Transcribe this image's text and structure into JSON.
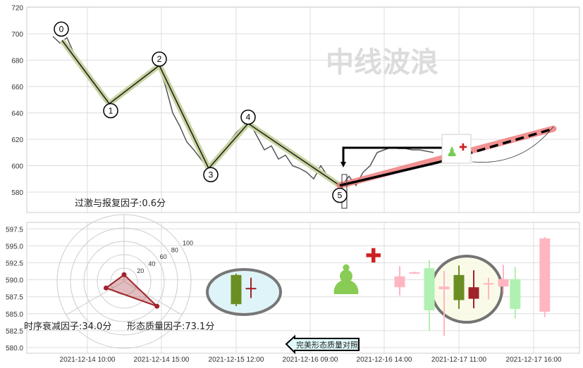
{
  "watermark": "中线波浪",
  "chart_data": [
    {
      "type": "line",
      "title": "",
      "ylim": [
        580,
        720
      ],
      "yticks": [
        580,
        600,
        620,
        640,
        660,
        680,
        700,
        720
      ],
      "grid": true,
      "price_series": [
        698,
        693,
        697,
        685,
        678,
        670,
        660,
        655,
        645,
        652,
        656,
        660,
        662,
        668,
        672,
        676,
        660,
        640,
        630,
        618,
        612,
        605,
        598,
        605,
        612,
        618,
        625,
        630,
        632,
        622,
        612,
        615,
        605,
        608,
        600,
        598,
        595,
        590,
        600,
        592,
        588,
        585,
        592,
        585,
        595,
        600,
        610,
        612,
        614,
        613,
        613,
        612,
        612,
        611,
        610
      ],
      "wave_points": [
        {
          "label": "0",
          "i": 1.3,
          "price": 695
        },
        {
          "label": "1",
          "i": 8,
          "price": 647
        },
        {
          "label": "2",
          "i": 15.1,
          "price": 676
        },
        {
          "label": "3",
          "i": 22.1,
          "price": 598
        },
        {
          "label": "4",
          "i": 27.7,
          "price": 632
        },
        {
          "label": "5",
          "i": 40.7,
          "price": 585
        }
      ],
      "projection": {
        "from": {
          "i": 40.7,
          "price": 585
        },
        "to": {
          "i": 71,
          "price": 628
        },
        "color": "#f08080"
      },
      "colors": {
        "price": "#555555",
        "wave": "#222222",
        "wave_halo": "#c8d4a0"
      }
    },
    {
      "type": "candlestick",
      "ylim": [
        580,
        597.5
      ],
      "yticks": [
        "580.0",
        "582.5",
        "585.0",
        "587.5",
        "590.0",
        "592.5",
        "595.0",
        "597.5"
      ],
      "xticks": [
        "2021-12-14 10:00",
        "2021-12-14 15:00",
        "2021-12-15 12:00",
        "2021-12-16 09:00",
        "2021-12-16 14:00",
        "2021-12-17 11:00",
        "2021-12-17 16:00"
      ],
      "candles": [
        {
          "slot": 12.4,
          "open": 590.5,
          "close": 588.9,
          "high": 592.0,
          "low": 587.7,
          "color": "#ffb6c1"
        },
        {
          "slot": 12.9,
          "open": 591.1,
          "close": 591.0,
          "high": 591.2,
          "low": 590.9,
          "color": "#ffb6c1"
        },
        {
          "slot": 13.4,
          "open": 585.5,
          "close": 591.7,
          "high": 592.9,
          "low": 582.5,
          "color": "#b0f0b0"
        },
        {
          "slot": 13.9,
          "open": 589.0,
          "close": 588.6,
          "high": 591.3,
          "low": 581.7,
          "color": "#ffb6c1"
        },
        {
          "slot": 14.4,
          "open": 587.0,
          "close": 590.7,
          "high": 592.1,
          "low": 585.7,
          "color": "#6b8e23"
        },
        {
          "slot": 14.9,
          "open": 588.9,
          "close": 587.2,
          "high": 591.4,
          "low": 585.8,
          "color": "#a0232a"
        },
        {
          "slot": 15.4,
          "open": 589.5,
          "close": 589.4,
          "high": 590.3,
          "low": 587.1,
          "color": "#ffb6c1"
        },
        {
          "slot": 15.9,
          "open": 590.1,
          "close": 589.0,
          "high": 592.2,
          "low": 587.9,
          "color": "#ffb6c1"
        },
        {
          "slot": 16.3,
          "open": 585.7,
          "close": 590.1,
          "high": 591.9,
          "low": 584.3,
          "color": "#b0f0b0"
        },
        {
          "slot": 17.3,
          "open": 596.1,
          "close": 585.3,
          "high": 596.3,
          "low": 584.5,
          "color": "#ffb6c1"
        }
      ],
      "reference_candles": [
        {
          "open": 586.4,
          "close": 590.7,
          "high": 590.9,
          "low": 586.1,
          "color": "#6b8e23"
        },
        {
          "open": 588.8,
          "close": 588.7,
          "high": 590.3,
          "low": 587.3,
          "color": "#a0232a"
        }
      ]
    },
    {
      "type": "radar",
      "rings": [
        20,
        40,
        60,
        80,
        100
      ],
      "values": {
        "overshoot_repair": 0.6,
        "time_decay": 34.0,
        "form_quality": 73.1
      },
      "color": "#a0232a"
    }
  ],
  "labels": {
    "overshoot": "过激与报复因子:0.6分",
    "time_decay": "时序衰减因子:34.0分",
    "form_quality": "形态质量因子:73.1分",
    "compare_button": "完美形态质量对照"
  }
}
